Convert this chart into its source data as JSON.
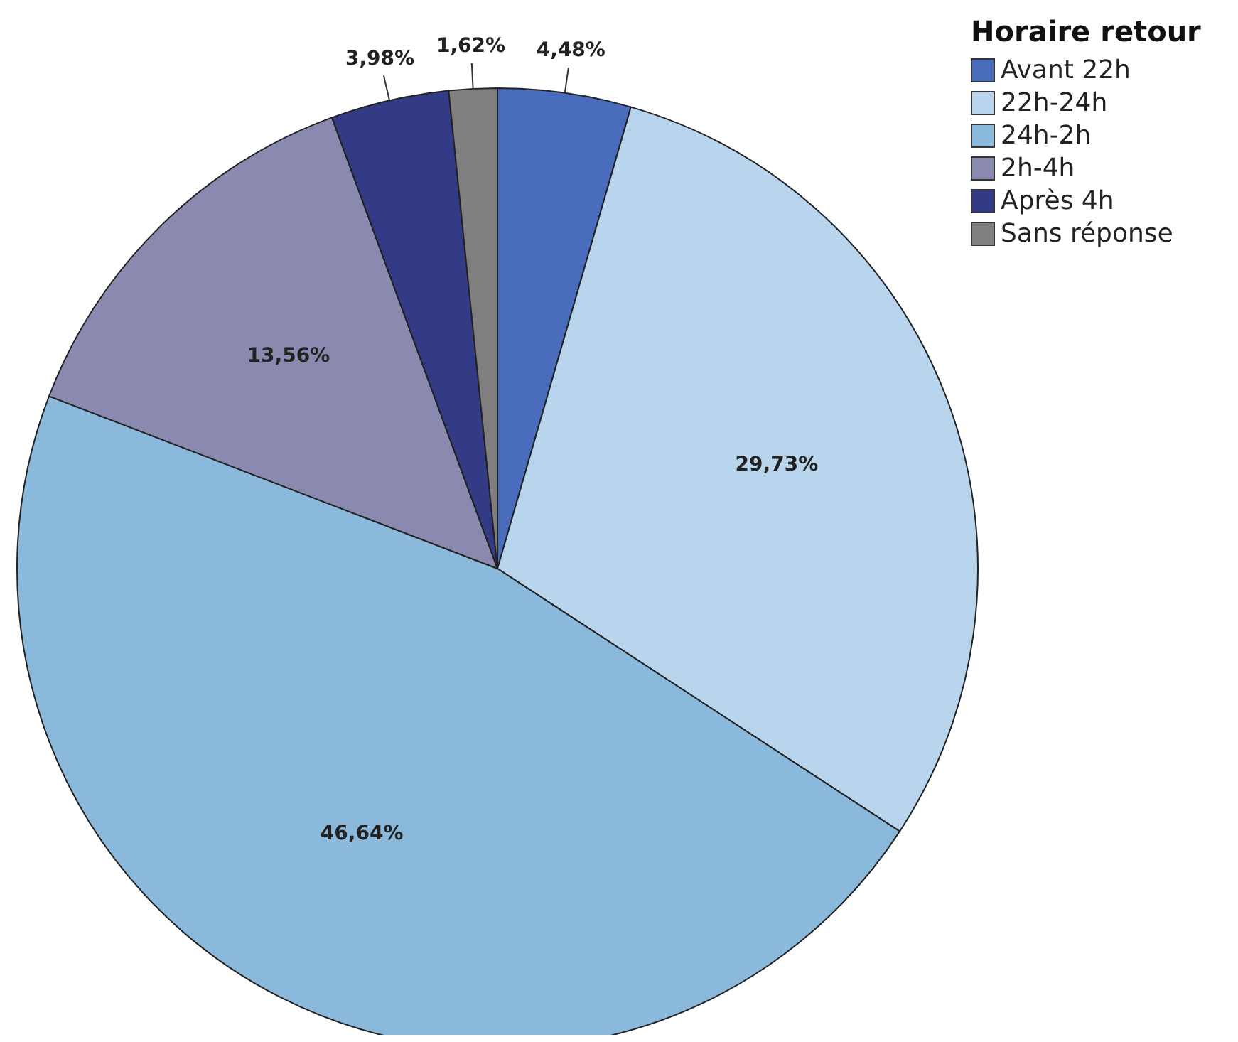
{
  "chart_data": {
    "type": "pie",
    "legend_title": "Horaire retour",
    "legend": "top right",
    "categories": [
      "Avant 22h",
      "22h-24h",
      "24h-2h",
      "2h-4h",
      "Après 4h",
      "Sans réponse"
    ],
    "values": [
      4.48,
      29.73,
      46.64,
      13.56,
      3.98,
      1.62
    ],
    "value_labels": [
      "4,48%",
      "29,73%",
      "46,64%",
      "13,56%",
      "3,98%",
      "1,62%"
    ],
    "colors": [
      "#4a6cbd",
      "#b9d5ed",
      "#8ab9dc",
      "#8a8ab0",
      "#333a86",
      "#7f7f7f"
    ]
  }
}
